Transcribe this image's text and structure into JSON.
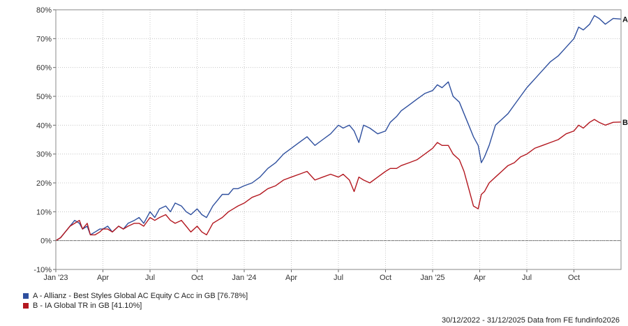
{
  "chart_data": {
    "type": "line",
    "y_ticks": [
      "-10%",
      "0%",
      "10%",
      "20%",
      "30%",
      "40%",
      "50%",
      "60%",
      "70%",
      "80%"
    ],
    "ylim": [
      -10,
      80
    ],
    "x_ticks": [
      "Jan '23",
      "Apr",
      "Jul",
      "Oct",
      "Jan '24",
      "Apr",
      "Jul",
      "Oct",
      "Jan '25",
      "Apr",
      "Jul",
      "Oct"
    ],
    "x_tick_values": [
      0,
      3,
      6,
      9,
      12,
      15,
      18,
      21,
      24,
      27,
      30,
      33
    ],
    "xlim": [
      0,
      36
    ],
    "x_unit": "months since 30/12/2022",
    "grid": true,
    "series": [
      {
        "name": "A - Allianz - Best Styles Global AC Equity C Acc in GB [76.78%]",
        "marker": "A",
        "color": "#2e4f9e",
        "x": [
          0,
          0.3,
          0.6,
          0.9,
          1.2,
          1.5,
          1.7,
          2.0,
          2.2,
          2.5,
          2.8,
          3.0,
          3.3,
          3.6,
          4.0,
          4.3,
          4.6,
          5.0,
          5.3,
          5.6,
          6.0,
          6.3,
          6.6,
          7.0,
          7.3,
          7.6,
          8.0,
          8.3,
          8.6,
          9.0,
          9.3,
          9.6,
          10.0,
          10.3,
          10.6,
          11.0,
          11.3,
          11.6,
          12.0,
          12.5,
          13.0,
          13.5,
          14.0,
          14.5,
          15.0,
          15.5,
          16.0,
          16.5,
          17.0,
          17.5,
          18.0,
          18.3,
          18.7,
          19.0,
          19.3,
          19.6,
          20.0,
          20.5,
          21.0,
          21.3,
          21.7,
          22.0,
          22.5,
          23.0,
          23.5,
          24.0,
          24.3,
          24.6,
          25.0,
          25.3,
          25.7,
          26.0,
          26.3,
          26.6,
          26.9,
          27.1,
          27.3,
          27.6,
          28.0,
          28.4,
          28.8,
          29.2,
          29.6,
          30.0,
          30.5,
          31.0,
          31.5,
          32.0,
          32.5,
          33.0,
          33.3,
          33.6,
          34.0,
          34.3,
          34.6,
          35.0,
          35.5,
          36.0
        ],
        "values": [
          0,
          1,
          3,
          5,
          7,
          6,
          4,
          5,
          2,
          3,
          4,
          4,
          5,
          3,
          5,
          4,
          6,
          7,
          8,
          6,
          10,
          8,
          11,
          12,
          10,
          13,
          12,
          10,
          9,
          11,
          9,
          8,
          12,
          14,
          16,
          16,
          18,
          18,
          19,
          20,
          22,
          25,
          27,
          30,
          32,
          34,
          36,
          33,
          35,
          37,
          40,
          39,
          40,
          38,
          34,
          40,
          39,
          37,
          38,
          41,
          43,
          45,
          47,
          49,
          51,
          52,
          54,
          53,
          55,
          50,
          48,
          44,
          40,
          36,
          33,
          27,
          29,
          33,
          40,
          42,
          44,
          47,
          50,
          53,
          56,
          59,
          62,
          64,
          67,
          70,
          74,
          73,
          75,
          78,
          77,
          75,
          77,
          76.78
        ]
      },
      {
        "name": "B - IA Global TR in GB [41.10%]",
        "marker": "B",
        "color": "#b3171f",
        "x": [
          0,
          0.3,
          0.6,
          0.9,
          1.2,
          1.5,
          1.7,
          2.0,
          2.2,
          2.5,
          2.8,
          3.0,
          3.3,
          3.6,
          4.0,
          4.3,
          4.6,
          5.0,
          5.3,
          5.6,
          6.0,
          6.3,
          6.6,
          7.0,
          7.3,
          7.6,
          8.0,
          8.3,
          8.6,
          9.0,
          9.3,
          9.6,
          10.0,
          10.3,
          10.6,
          11.0,
          11.3,
          11.6,
          12.0,
          12.5,
          13.0,
          13.5,
          14.0,
          14.5,
          15.0,
          15.5,
          16.0,
          16.5,
          17.0,
          17.5,
          18.0,
          18.3,
          18.7,
          19.0,
          19.3,
          19.6,
          20.0,
          20.5,
          21.0,
          21.3,
          21.7,
          22.0,
          22.5,
          23.0,
          23.5,
          24.0,
          24.3,
          24.6,
          25.0,
          25.3,
          25.7,
          26.0,
          26.3,
          26.6,
          26.9,
          27.1,
          27.3,
          27.6,
          28.0,
          28.4,
          28.8,
          29.2,
          29.6,
          30.0,
          30.5,
          31.0,
          31.5,
          32.0,
          32.5,
          33.0,
          33.3,
          33.6,
          34.0,
          34.3,
          34.6,
          35.0,
          35.5,
          36.0
        ],
        "values": [
          0,
          1,
          3,
          5,
          6,
          7,
          4,
          6,
          2,
          2,
          3,
          4,
          4,
          3,
          5,
          4,
          5,
          6,
          6,
          5,
          8,
          7,
          8,
          9,
          7,
          6,
          7,
          5,
          3,
          5,
          3,
          2,
          6,
          7,
          8,
          10,
          11,
          12,
          13,
          15,
          16,
          18,
          19,
          21,
          22,
          23,
          24,
          21,
          22,
          23,
          22,
          23,
          21,
          17,
          22,
          21,
          20,
          22,
          24,
          25,
          25,
          26,
          27,
          28,
          30,
          32,
          34,
          33,
          33,
          30,
          28,
          24,
          18,
          12,
          11,
          16,
          17,
          20,
          22,
          24,
          26,
          27,
          29,
          30,
          32,
          33,
          34,
          35,
          37,
          38,
          40,
          39,
          41,
          42,
          41,
          40,
          41,
          41.1
        ]
      }
    ]
  },
  "footer": {
    "date_range": "30/12/2022 - 31/12/2025 Data from FE fundinfo2026"
  }
}
